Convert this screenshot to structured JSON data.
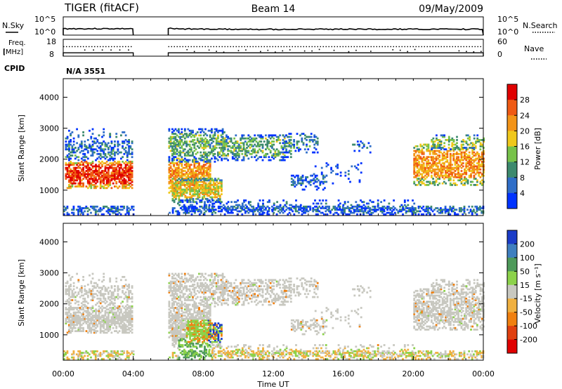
{
  "header": {
    "radar": "TIGER (fitACF)",
    "beam": "Beam 14",
    "date": "09/May/2009",
    "cpid_label": "CPID",
    "cpid_value": "N/A 3551"
  },
  "chart_data": [
    {
      "type": "line",
      "name": "noise-panel",
      "left_label": "N.Sky",
      "right_label": "N.Search",
      "y_ticks_left": [
        "10^5",
        "10^0"
      ],
      "y_ticks_right": [
        "10^5",
        "10^0"
      ],
      "segments": [
        {
          "x_start": 0.0,
          "x_end": 4.0,
          "level": 0.35
        },
        {
          "x_start": 6.0,
          "x_end": 24.0,
          "level": 0.32
        }
      ]
    },
    {
      "type": "line",
      "name": "freq-panel",
      "left_label": "Freq. [MHz]",
      "right_label": "Nave",
      "y_ticks_left": [
        "18",
        "8"
      ],
      "y_ticks_right": [
        "60",
        "0"
      ],
      "freq_segments": [
        {
          "x_start": 0.0,
          "x_end": 4.0,
          "value": 10
        },
        {
          "x_start": 6.0,
          "x_end": 24.0,
          "value": 10
        }
      ],
      "nave_level": 34
    },
    {
      "type": "heatmap",
      "name": "power-panel",
      "ylabel": "Slant Range [km]",
      "ylim": [
        180,
        4600
      ],
      "y_ticks": [
        "1000",
        "2000",
        "3000",
        "4000"
      ],
      "xlim": [
        0,
        24
      ],
      "colorbar": {
        "label": "Power [dB]",
        "ticks": [
          "4",
          "8",
          "12",
          "16",
          "20",
          "24",
          "28"
        ],
        "colors": [
          "#0033ff",
          "#2f6ec8",
          "#3d8a6e",
          "#77c24a",
          "#f0c81c",
          "#f39418",
          "#ef5a14",
          "#e00000"
        ]
      }
    },
    {
      "type": "heatmap",
      "name": "velocity-panel",
      "ylabel": "Slant Range [km]",
      "ylim": [
        180,
        4600
      ],
      "y_ticks": [
        "1000",
        "2000",
        "3000",
        "4000"
      ],
      "xlim": [
        0,
        24
      ],
      "xlabel": "Time UT",
      "x_ticks": [
        "00:00",
        "04:00",
        "08:00",
        "12:00",
        "16:00",
        "20:00",
        "00:00"
      ],
      "colorbar": {
        "label": "Velocity [m s⁻¹]",
        "ticks": [
          "200",
          "100",
          "50",
          "15",
          "-15",
          "-50",
          "-100",
          "-200"
        ],
        "colors": [
          "#1b3cc8",
          "#3f7fbf",
          "#4e9a5a",
          "#8cd24a",
          "#c8c8c0",
          "#f0b040",
          "#f08010",
          "#e04010",
          "#e00000"
        ]
      }
    }
  ]
}
